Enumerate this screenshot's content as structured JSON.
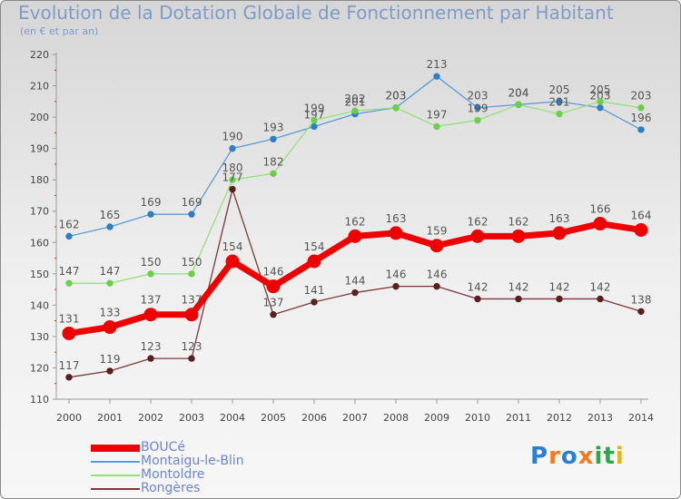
{
  "header": {
    "title": "Evolution de la Dotation Globale de Fonctionnement par Habitant",
    "subtitle": "(en € et par an)"
  },
  "logo": {
    "text": "Proxiti",
    "letters": [
      {
        "ch": "P",
        "color": "#2a7fd4"
      },
      {
        "ch": "r",
        "color": "#f07c1e"
      },
      {
        "ch": "o",
        "color": "#2a7fd4"
      },
      {
        "ch": "x",
        "color": "#f07c1e"
      },
      {
        "ch": "i",
        "color": "#2aa84a"
      },
      {
        "ch": "t",
        "color": "#2aa84a"
      },
      {
        "ch": "i",
        "color": "#e8b21a"
      }
    ]
  },
  "chart_data": {
    "type": "line",
    "title": "Evolution de la Dotation Globale de Fonctionnement par Habitant",
    "subtitle": "(en € et par an)",
    "x": [
      2000,
      2001,
      2002,
      2003,
      2004,
      2005,
      2006,
      2007,
      2008,
      2009,
      2010,
      2011,
      2012,
      2013,
      2014
    ],
    "ylim": [
      110,
      220
    ],
    "yticks": [
      110,
      120,
      130,
      140,
      150,
      160,
      170,
      180,
      190,
      200,
      210,
      220
    ],
    "grid": false,
    "legend_position": "bottom-left",
    "series": [
      {
        "name": "BOUCé",
        "color": "#ee0000",
        "emphasis": true,
        "values": [
          131,
          133,
          137,
          137,
          154,
          146,
          154,
          162,
          163,
          159,
          162,
          162,
          163,
          166,
          164
        ]
      },
      {
        "name": "Montaigu-le-Blin",
        "color": "#5b9bd5",
        "marker": "#2f7ec4",
        "emphasis": false,
        "values": [
          162,
          165,
          169,
          169,
          190,
          193,
          197,
          201,
          203,
          213,
          203,
          204,
          205,
          203,
          196
        ]
      },
      {
        "name": "Montoldre",
        "color": "#96e07a",
        "marker": "#6ccf4a",
        "emphasis": false,
        "values": [
          147,
          147,
          150,
          150,
          180,
          182,
          199,
          202,
          203,
          197,
          199,
          204,
          201,
          205,
          203
        ]
      },
      {
        "name": "Rongères",
        "color": "#7a3a3a",
        "marker": "#5a1f1f",
        "emphasis": false,
        "values": [
          117,
          119,
          123,
          123,
          177,
          137,
          141,
          144,
          146,
          146,
          142,
          142,
          142,
          142,
          138
        ]
      }
    ]
  }
}
